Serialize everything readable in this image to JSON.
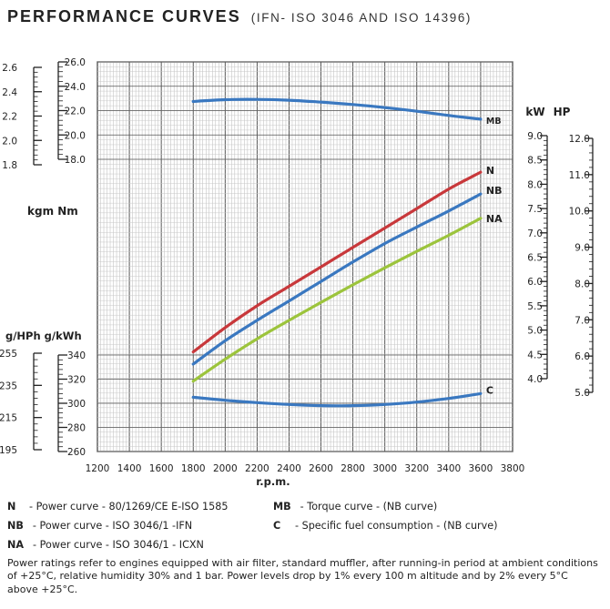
{
  "header": {
    "title": "PERFORMANCE CURVES",
    "subtitle": "(IFN- ISO 3046 AND ISO 14396)"
  },
  "axes": {
    "x_title": "r.p.m.",
    "torque_units_label": "kgm  Nm",
    "consumption_units_label": "g/HPh g/kWh",
    "power_units_kw": "kW",
    "power_units_hp": "HP"
  },
  "colors": {
    "N": "#c8383b",
    "NB": "#3a78c0",
    "NA": "#9cc43c",
    "MB": "#3a78c0",
    "C": "#3a78c0"
  },
  "chart_data": {
    "type": "line",
    "x_ticks": [
      1200,
      1400,
      1600,
      1800,
      2000,
      2200,
      2400,
      2600,
      2800,
      3000,
      3200,
      3400,
      3600,
      3800
    ],
    "xlim": [
      1200,
      3800
    ],
    "axes_scales": {
      "torque_Nm": {
        "range": [
          18.0,
          26.0
        ],
        "ticks": [
          "26.0",
          "24.0",
          "22.0",
          "20.0",
          "18.0"
        ]
      },
      "torque_kgm": {
        "range": [
          1.8,
          2.6
        ],
        "ticks": [
          "2.6",
          "2.4",
          "2.2",
          "2.0",
          "1.8"
        ]
      },
      "consumption_gkWh": {
        "range": [
          260,
          340
        ],
        "ticks": [
          "340",
          "320",
          "300",
          "280",
          "260"
        ]
      },
      "consumption_gHPh": {
        "range": [
          195,
          255
        ],
        "ticks": [
          "255",
          "235",
          "215",
          "195"
        ]
      },
      "power_kW": {
        "range": [
          4.0,
          9.0
        ],
        "ticks": [
          "9.0",
          "8.5",
          "8.0",
          "7.5",
          "7.0",
          "6.5",
          "6.0",
          "5.5",
          "5.0",
          "4.5",
          "4.0"
        ]
      },
      "power_HP": {
        "range": [
          5.0,
          12.0
        ],
        "ticks": [
          "12.0",
          "11.0",
          "10.0",
          "9.0",
          "8.0",
          "7.0",
          "6.0",
          "5.0"
        ]
      }
    },
    "series": [
      {
        "name": "MB",
        "axis": "torque_Nm",
        "x": [
          1800,
          2000,
          2200,
          2400,
          2600,
          2800,
          3000,
          3200,
          3400,
          3600
        ],
        "values": [
          22.75,
          22.9,
          22.92,
          22.85,
          22.7,
          22.5,
          22.25,
          21.95,
          21.6,
          21.3
        ]
      },
      {
        "name": "N",
        "axis": "power_kW",
        "x": [
          1800,
          2000,
          2200,
          2400,
          2600,
          2800,
          3000,
          3200,
          3400,
          3600
        ],
        "values": [
          4.55,
          5.05,
          5.5,
          5.9,
          6.3,
          6.7,
          7.1,
          7.5,
          7.9,
          8.25
        ]
      },
      {
        "name": "NB",
        "axis": "power_kW",
        "x": [
          1800,
          2000,
          2200,
          2400,
          2600,
          2800,
          3000,
          3200,
          3400,
          3600
        ],
        "values": [
          4.3,
          4.78,
          5.2,
          5.6,
          6.0,
          6.4,
          6.78,
          7.12,
          7.45,
          7.8
        ]
      },
      {
        "name": "NA",
        "axis": "power_kW",
        "x": [
          1800,
          2000,
          2200,
          2400,
          2600,
          2800,
          3000,
          3200,
          3400,
          3600
        ],
        "values": [
          3.95,
          4.4,
          4.82,
          5.2,
          5.57,
          5.93,
          6.28,
          6.62,
          6.95,
          7.3
        ]
      },
      {
        "name": "C",
        "axis": "consumption_gkWh",
        "x": [
          1800,
          2000,
          2200,
          2400,
          2600,
          2800,
          3000,
          3200,
          3400,
          3600
        ],
        "values": [
          305,
          302.5,
          300.5,
          299,
          298,
          298,
          299,
          301,
          304,
          308
        ]
      }
    ]
  },
  "legend": {
    "N": {
      "code": "N",
      "text": "- Power curve - 80/1269/CE E-ISO 1585"
    },
    "NB": {
      "code": "NB",
      "text": "- Power curve - ISO 3046/1 -IFN"
    },
    "NA": {
      "code": "NA",
      "text": "- Power curve - ISO 3046/1 - ICXN"
    },
    "MB": {
      "code": "MB",
      "text": "- Torque curve - (NB curve)"
    },
    "C": {
      "code": "C",
      "text": "- Specific fuel consumption - (NB curve)"
    }
  },
  "footnote": "Power ratings refer to engines equipped with air filter, standard muffler, after running-in period at ambient conditions of +25°C, relative humidity 30% and 1 bar. Power levels drop by 1% every 100 m altitude and by 2% every 5°C above +25°C."
}
